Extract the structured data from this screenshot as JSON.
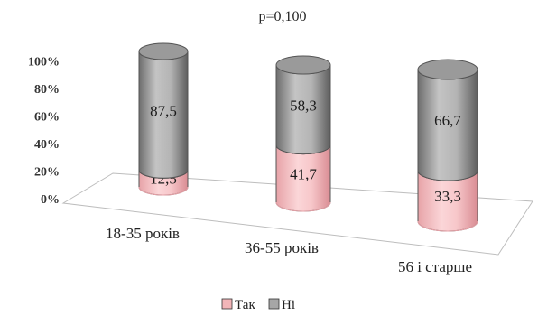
{
  "chart_data": {
    "type": "bar",
    "stacked": true,
    "percent": true,
    "style": "3d-cylinder",
    "title": "p=0,100",
    "categories": [
      "18-35 років",
      "36-55 років",
      "56 і старше"
    ],
    "series": [
      {
        "name": "Так",
        "values": [
          12.5,
          41.7,
          33.3
        ],
        "labels": [
          "12,5",
          "41,7",
          "33,3"
        ],
        "color": "#f2b5b8"
      },
      {
        "name": "Ні",
        "values": [
          87.5,
          58.3,
          66.7
        ],
        "labels": [
          "87,5",
          "58,3",
          "66,7"
        ],
        "color": "#a6a6a6"
      }
    ],
    "y_ticks": [
      "0%",
      "20%",
      "40%",
      "60%",
      "80%",
      "100%"
    ],
    "ylim": [
      0,
      100
    ],
    "legend": "bottom-center",
    "grid": false
  }
}
